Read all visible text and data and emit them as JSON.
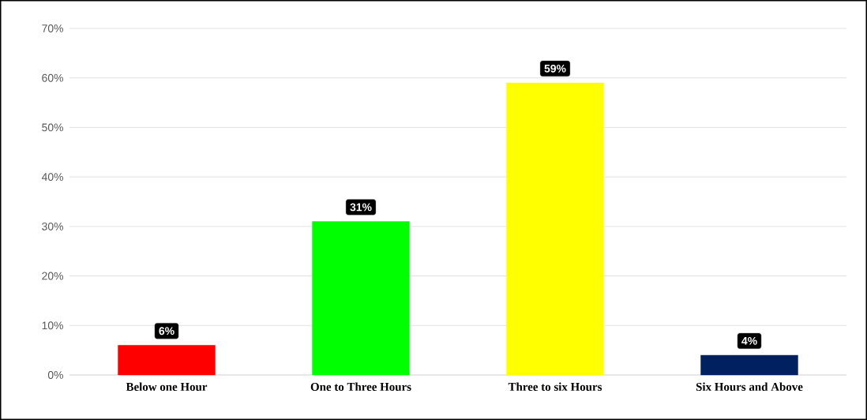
{
  "chart_data": {
    "type": "bar",
    "categories": [
      "Below one Hour",
      "One to Three Hours",
      "Three to six Hours",
      "Six Hours and Above"
    ],
    "values": [
      6,
      31,
      59,
      4
    ],
    "colors": [
      "#ff0000",
      "#00ff00",
      "#ffff00",
      "#002060"
    ],
    "value_labels": [
      "6%",
      "31%",
      "59%",
      "4%"
    ],
    "ylim": [
      0,
      70
    ],
    "yticks": [
      {
        "value": 0,
        "label": "0%"
      },
      {
        "value": 10,
        "label": "10%"
      },
      {
        "value": 20,
        "label": "20%"
      },
      {
        "value": 30,
        "label": "30%"
      },
      {
        "value": 40,
        "label": "40%"
      },
      {
        "value": 50,
        "label": "50%"
      },
      {
        "value": 60,
        "label": "60%"
      },
      {
        "value": 70,
        "label": "70%"
      }
    ],
    "grid": "y"
  }
}
